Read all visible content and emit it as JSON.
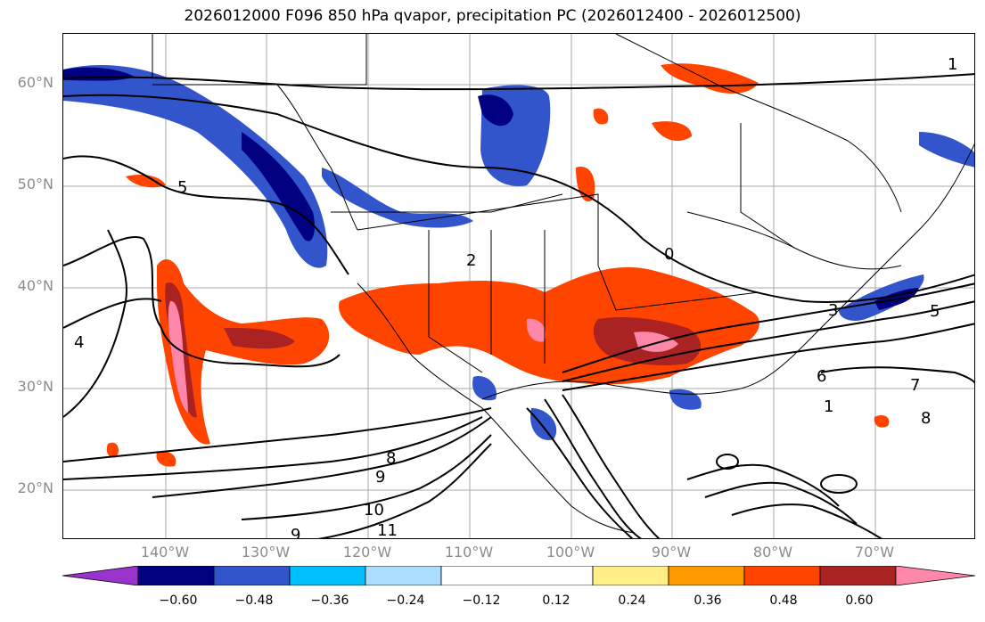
{
  "title": "2026012000 F096 850 hPa qvapor, precipitation PC (2026012400 - 2026012500)",
  "lat_labels": [
    "60°N",
    "50°N",
    "40°N",
    "30°N",
    "20°N"
  ],
  "lon_labels": [
    "140°W",
    "130°W",
    "120°W",
    "110°W",
    "100°W",
    "90°W",
    "80°W",
    "70°W"
  ],
  "colorbar": {
    "colors": [
      "#9933cc",
      "#000080",
      "#3355cc",
      "#00bfff",
      "#aaddff",
      "#ffffff",
      "#ffee88",
      "#ff9900",
      "#ff4400",
      "#aa2222",
      "#ff88aa"
    ],
    "ticks": [
      "−0.60",
      "−0.48",
      "−0.36",
      "−0.24",
      "−0.12",
      "0.12",
      "0.24",
      "0.36",
      "0.48",
      "0.60"
    ]
  },
  "contour_labels": [
    "1",
    "5",
    "3",
    "6",
    "7",
    "8",
    "9",
    "10",
    "11",
    "4",
    "2",
    "1",
    "0",
    "5",
    "9",
    "8"
  ],
  "colors": {
    "contour": "#000000",
    "grid": "#aaaaaa",
    "border": "#000000"
  }
}
